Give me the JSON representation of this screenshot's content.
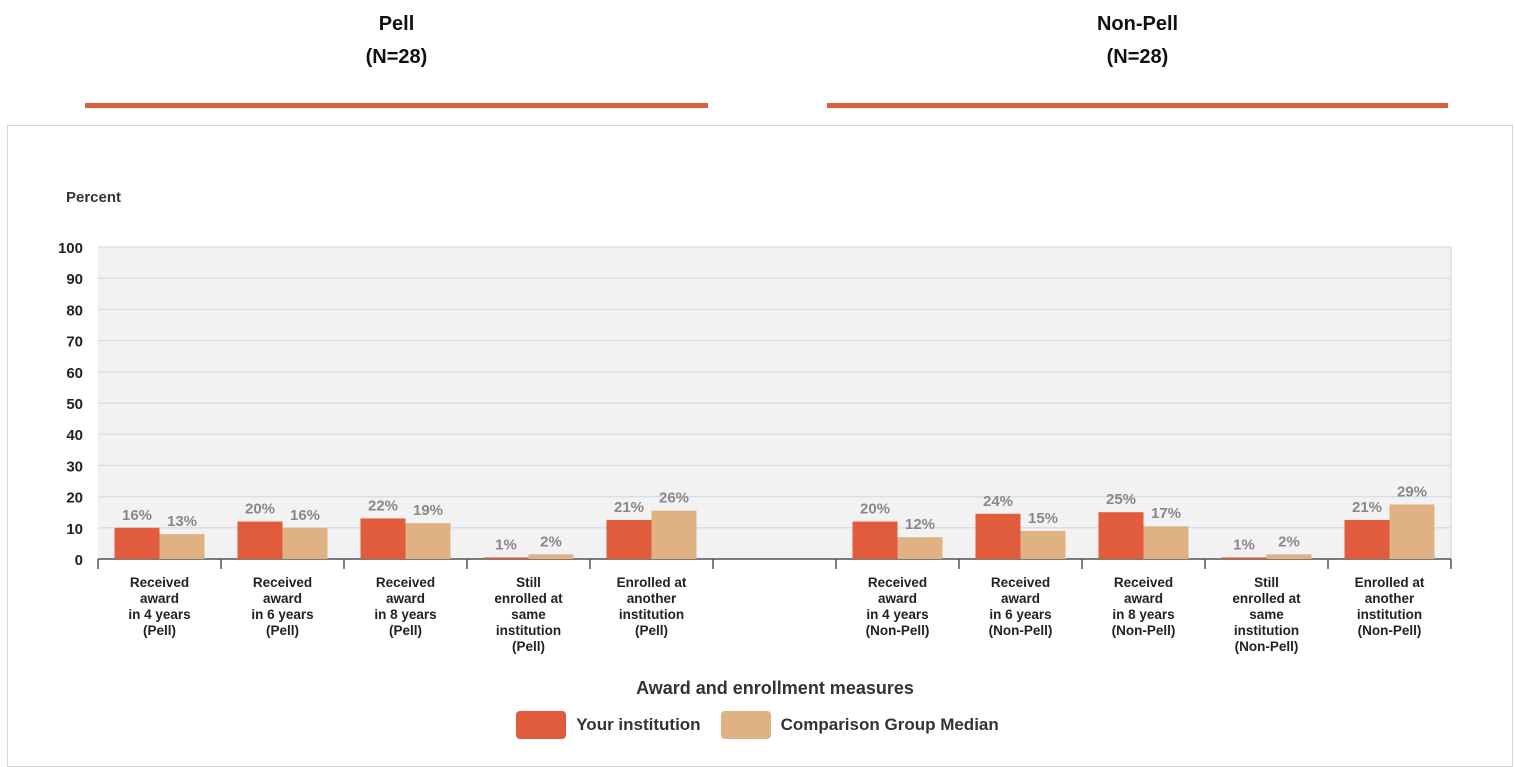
{
  "headers": [
    {
      "title": "Pell",
      "n": "(N=28)"
    },
    {
      "title": "Non-Pell",
      "n": "(N=28)"
    }
  ],
  "colors": {
    "institution": "#e05c3c",
    "comparison": "#e0b283",
    "rule": "#d9603c",
    "plot_bg": "#f2f2f2",
    "grid": "#d9dfea"
  },
  "chart_data": {
    "type": "bar",
    "ylabel": "Percent",
    "xlabel": "Award and enrollment measures",
    "ylim": [
      0,
      100
    ],
    "yticks": [
      0,
      10,
      20,
      30,
      40,
      50,
      60,
      70,
      80,
      90,
      100
    ],
    "grid": true,
    "legend_position": "bottom",
    "categories": [
      [
        "Received",
        "award",
        "in 4 years",
        "(Pell)"
      ],
      [
        "Received",
        "award",
        "in 6 years",
        "(Pell)"
      ],
      [
        "Received",
        "award",
        "in 8 years",
        "(Pell)"
      ],
      [
        "Still",
        "enrolled at",
        "same",
        "institution",
        "(Pell)"
      ],
      [
        "Enrolled at",
        "another",
        "institution",
        "(Pell)"
      ],
      [],
      [
        "Received",
        "award",
        "in 4 years",
        "(Non-Pell)"
      ],
      [
        "Received",
        "award",
        "in 6 years",
        "(Non-Pell)"
      ],
      [
        "Received",
        "award",
        "in 8 years",
        "(Non-Pell)"
      ],
      [
        "Still",
        "enrolled at",
        "same",
        "institution",
        "(Non-Pell)"
      ],
      [
        "Enrolled at",
        "another",
        "institution",
        "(Non-Pell)"
      ]
    ],
    "series": [
      {
        "name": "Your institution",
        "values": [
          10,
          12,
          13,
          0.5,
          12.5,
          null,
          12,
          14.5,
          15,
          0.5,
          12.5
        ],
        "labels": [
          "16%",
          "20%",
          "22%",
          "1%",
          "21%",
          "",
          "20%",
          "24%",
          "25%",
          "1%",
          "21%"
        ]
      },
      {
        "name": "Comparison Group Median",
        "values": [
          8,
          10,
          11.5,
          1.5,
          15.5,
          null,
          7,
          9,
          10.5,
          1.5,
          17.5
        ],
        "labels": [
          "13%",
          "16%",
          "19%",
          "2%",
          "26%",
          "",
          "12%",
          "15%",
          "17%",
          "2%",
          "29%"
        ]
      }
    ]
  }
}
